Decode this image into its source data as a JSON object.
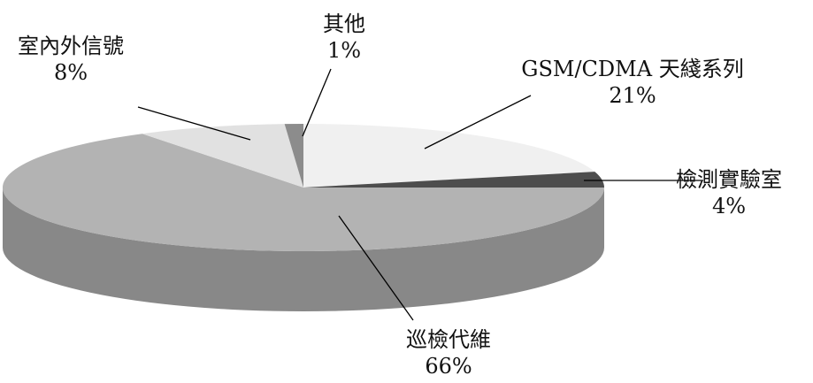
{
  "chart_data": {
    "type": "pie",
    "style": "3d",
    "slices": [
      {
        "label": "GSM/CDMA 天綫系列",
        "value": 21,
        "display": "21%"
      },
      {
        "label": "檢測實驗室",
        "value": 4,
        "display": "4%"
      },
      {
        "label": "巡檢代維",
        "value": 66,
        "display": "66%"
      },
      {
        "label": "室內外信號",
        "value": 8,
        "display": "8%"
      },
      {
        "label": "其他",
        "value": 1,
        "display": "1%"
      }
    ],
    "colors": {
      "GSM/CDMA 天綫系列": "#f0f0f0",
      "檢測實驗室": "#4d4d4d",
      "巡檢代維": "#b3b3b3",
      "室內外信號": "#e1e1e1",
      "其他": "#8c8c8c"
    },
    "side_colors": {
      "巡檢代維": "#888888",
      "檢測實驗室": "#383838"
    },
    "legend": "none"
  }
}
